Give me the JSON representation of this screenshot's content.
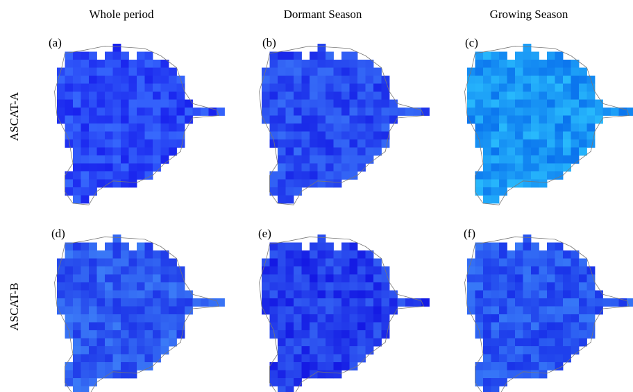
{
  "columns": [
    "Whole period",
    "Dormant Season",
    "Growing Season"
  ],
  "rows": [
    "ASCAT-A",
    "ASCAT-B"
  ],
  "panels": [
    "(a)",
    "(b)",
    "(c)",
    "(d)",
    "(e)",
    "(f)"
  ]
}
